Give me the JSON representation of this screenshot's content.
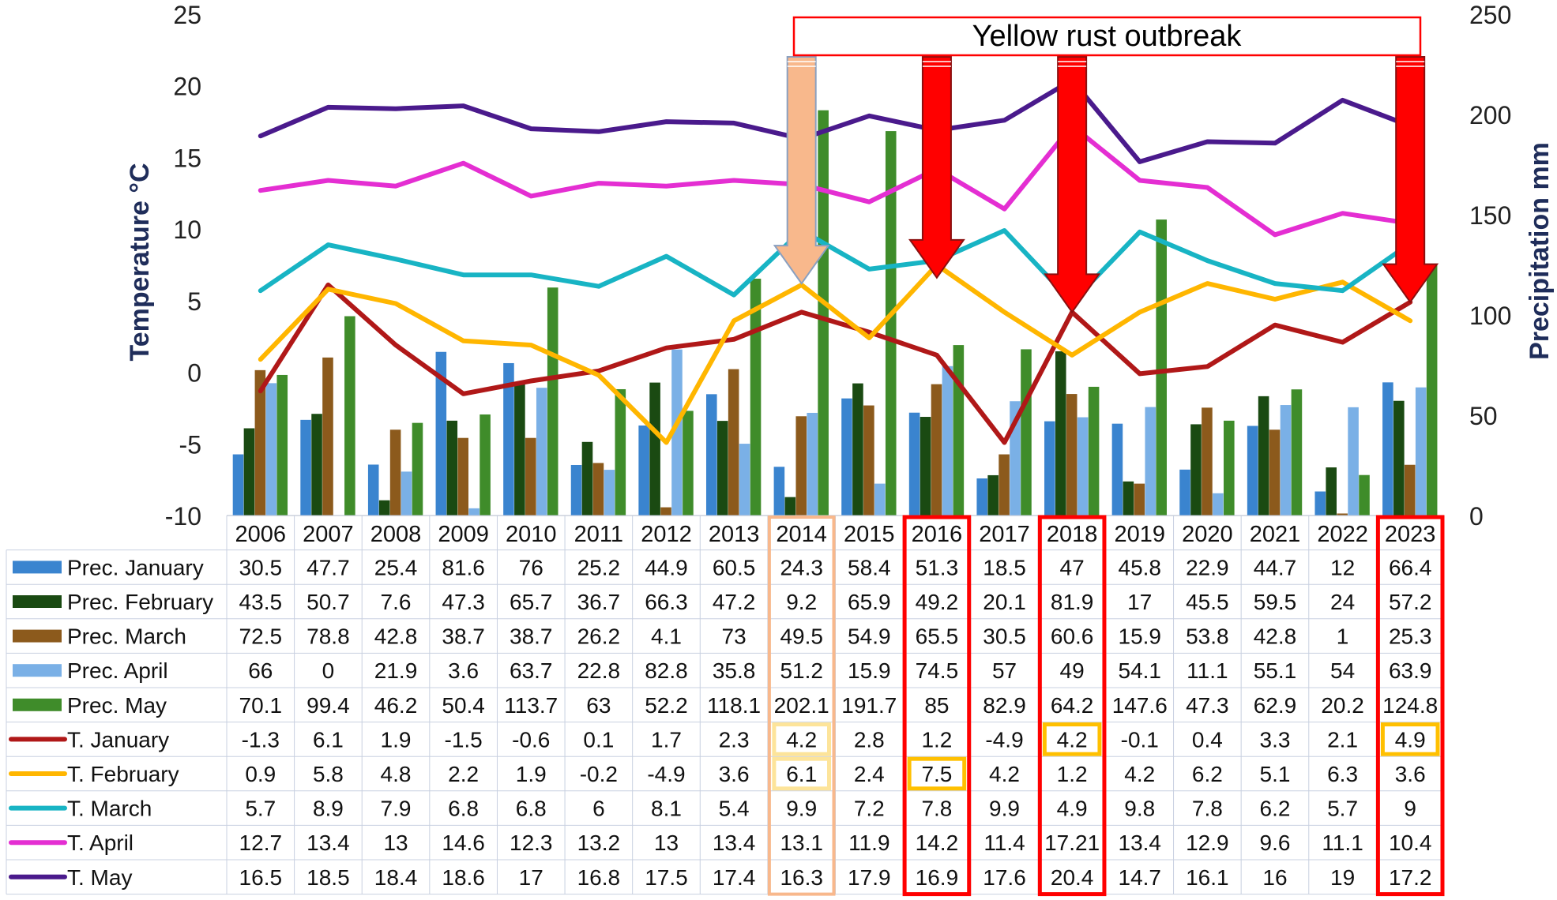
{
  "chart_data": {
    "type": "bar+line+table",
    "title": "Yellow rust outbreak",
    "ylabel_left": "Temperature °C",
    "ylabel_right": "Precipitation mm",
    "ylim_left": [
      -10,
      25
    ],
    "ylim_right": [
      0,
      250
    ],
    "yticks_left": [
      "25",
      "20",
      "15",
      "10",
      "5",
      "0",
      "-5",
      "-10"
    ],
    "yticks_right": [
      "250",
      "200",
      "150",
      "100",
      "50",
      "0"
    ],
    "categories": [
      "2006",
      "2007",
      "2008",
      "2009",
      "2010",
      "2011",
      "2012",
      "2013",
      "2014",
      "2015",
      "2016",
      "2017",
      "2018",
      "2019",
      "2020",
      "2021",
      "2022",
      "2023"
    ],
    "outbreak_years": [
      "2016",
      "2018",
      "2023"
    ],
    "weak_outbreak_years": [
      "2014"
    ],
    "bar_series": [
      {
        "name": "Prec. January",
        "color": "#3a84cf",
        "values": [
          30.5,
          47.7,
          25.4,
          81.6,
          76,
          25.2,
          44.9,
          60.5,
          24.3,
          58.4,
          51.3,
          18.5,
          47,
          45.8,
          22.9,
          44.7,
          12,
          66.4
        ]
      },
      {
        "name": "Prec. February",
        "color": "#1a4a12",
        "values": [
          43.5,
          50.7,
          7.6,
          47.3,
          65.7,
          36.7,
          66.3,
          47.2,
          9.2,
          65.9,
          49.2,
          20.1,
          81.9,
          17,
          45.5,
          59.5,
          24,
          57.2
        ]
      },
      {
        "name": "Prec. March",
        "color": "#8c5a1c",
        "values": [
          72.5,
          78.8,
          42.8,
          38.7,
          38.7,
          26.2,
          4.1,
          73,
          49.5,
          54.9,
          65.5,
          30.5,
          60.6,
          15.9,
          53.8,
          42.8,
          1,
          25.3
        ]
      },
      {
        "name": "Prec. April",
        "color": "#7ab0e6",
        "values": [
          66,
          0,
          21.9,
          3.6,
          63.7,
          22.8,
          82.8,
          35.8,
          51.2,
          15.9,
          74.5,
          57,
          49,
          54.1,
          11.1,
          55.1,
          54,
          63.9
        ]
      },
      {
        "name": "Prec. May",
        "color": "#3f8c2a",
        "values": [
          70.1,
          99.4,
          46.2,
          50.4,
          113.7,
          63,
          52.2,
          118.1,
          202.1,
          191.7,
          85,
          82.9,
          64.2,
          147.6,
          47.3,
          62.9,
          20.2,
          124.8
        ]
      }
    ],
    "line_series": [
      {
        "name": "T. January",
        "color": "#b01818",
        "values": [
          "-1.3",
          "6.1",
          "1.9",
          "-1.5",
          "-0.6",
          "0.1",
          "1.7",
          "2.3",
          "4.2",
          "2.8",
          "1.2",
          "-4.9",
          "4.2",
          "-0.1",
          "0.4",
          "3.3",
          "2.1",
          "4.9"
        ]
      },
      {
        "name": "T. February",
        "color": "#ffb600",
        "values": [
          "0.9",
          "5.8",
          "4.8",
          "2.2",
          "1.9",
          "-0.2",
          "-4.9",
          "3.6",
          "6.1",
          "2.4",
          "7.5",
          "4.2",
          "1.2",
          "4.2",
          "6.2",
          "5.1",
          "6.3",
          "3.6"
        ]
      },
      {
        "name": "T. March",
        "color": "#18b4c4",
        "values": [
          "5.7",
          "8.9",
          "7.9",
          "6.8",
          "6.8",
          "6",
          "8.1",
          "5.4",
          "9.9",
          "7.2",
          "7.8",
          "9.9",
          "4.9",
          "9.8",
          "7.8",
          "6.2",
          "5.7",
          "9"
        ]
      },
      {
        "name": "T. April",
        "color": "#e42ed2",
        "values": [
          "12.7",
          "13.4",
          "13",
          "14.6",
          "12.3",
          "13.2",
          "13",
          "13.4",
          "13.1",
          "11.9",
          "14.2",
          "11.4",
          "17.21",
          "13.4",
          "12.9",
          "9.6",
          "11.1",
          "10.4"
        ]
      },
      {
        "name": "T. May",
        "color": "#4a1a8c",
        "values": [
          "16.5",
          "18.5",
          "18.4",
          "18.6",
          "17",
          "16.8",
          "17.5",
          "17.4",
          "16.3",
          "17.9",
          "16.9",
          "17.6",
          "20.4",
          "14.7",
          "16.1",
          "16",
          "19",
          "17.2"
        ]
      }
    ],
    "highlighted_cells": [
      {
        "series": "T. January",
        "year": "2014",
        "style": "pale"
      },
      {
        "series": "T. February",
        "year": "2014",
        "style": "pale"
      },
      {
        "series": "T. February",
        "year": "2016",
        "style": "strong"
      },
      {
        "series": "T. January",
        "year": "2018",
        "style": "strong"
      },
      {
        "series": "T. January",
        "year": "2023",
        "style": "strong"
      }
    ],
    "colors": {
      "outbreak": "#ff0000",
      "weak_outbreak": "#f8b88c",
      "highlight": "#ffc000",
      "highlight_pale": "#fde49a",
      "axis_title": "#1f2d5a"
    }
  }
}
